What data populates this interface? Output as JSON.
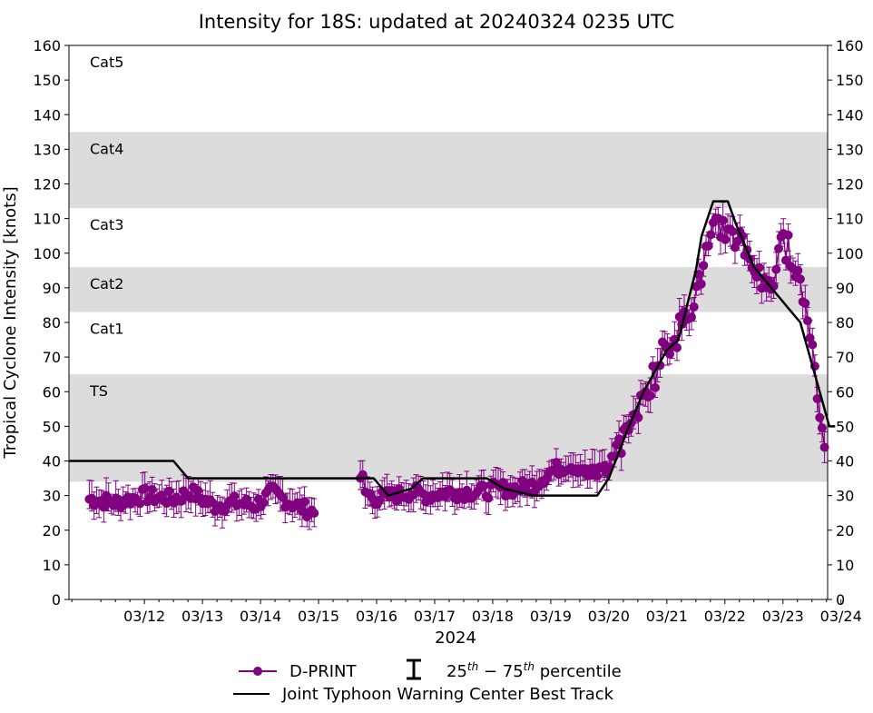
{
  "chart_data": {
    "type": "scatter",
    "title": "Intensity for 18S: updated at 20240324 0235 UTC",
    "xlabel": "2024",
    "ylabel": "Tropical Cyclone Intensity [knots]",
    "ylim": [
      0,
      160
    ],
    "yticks": [
      0,
      10,
      20,
      30,
      40,
      50,
      60,
      70,
      80,
      90,
      100,
      110,
      120,
      130,
      140,
      150,
      160
    ],
    "xlim_days": [
      10.7,
      23.77
    ],
    "xticks": [
      {
        "day": 12,
        "label": "03/12"
      },
      {
        "day": 13,
        "label": "03/13"
      },
      {
        "day": 14,
        "label": "03/14"
      },
      {
        "day": 15,
        "label": "03/15"
      },
      {
        "day": 16,
        "label": "03/16"
      },
      {
        "day": 17,
        "label": "03/17"
      },
      {
        "day": 18,
        "label": "03/18"
      },
      {
        "day": 19,
        "label": "03/19"
      },
      {
        "day": 20,
        "label": "03/20"
      },
      {
        "day": 21,
        "label": "03/21"
      },
      {
        "day": 22,
        "label": "03/22"
      },
      {
        "day": 23,
        "label": "03/23"
      },
      {
        "day": 24,
        "label": "03/24"
      }
    ],
    "categories": [
      {
        "name": "TS",
        "min": 34,
        "max": 65,
        "shaded": true
      },
      {
        "name": "Cat1",
        "min": 65,
        "max": 83,
        "shaded": false
      },
      {
        "name": "Cat2",
        "min": 83,
        "max": 96,
        "shaded": true
      },
      {
        "name": "Cat3",
        "min": 96,
        "max": 113,
        "shaded": false
      },
      {
        "name": "Cat4",
        "min": 113,
        "max": 135,
        "shaded": true
      },
      {
        "name": "Cat5",
        "min": 135,
        "max": 160,
        "shaded": false
      }
    ],
    "series": [
      {
        "name": "D-PRINT",
        "color": "#800080",
        "marker": "circle",
        "errorbars": "25th-75th percentile",
        "segments": [
          {
            "start": 11.05,
            "end": 14.95,
            "points": [
              [
                11.05,
                29
              ],
              [
                11.5,
                28
              ],
              [
                12.0,
                30
              ],
              [
                12.5,
                29
              ],
              [
                12.8,
                31
              ],
              [
                13.2,
                27
              ],
              [
                13.6,
                28
              ],
              [
                13.9,
                27
              ],
              [
                14.2,
                31
              ],
              [
                14.5,
                28
              ],
              [
                14.8,
                26
              ],
              [
                14.95,
                25
              ]
            ]
          },
          {
            "start": 15.72,
            "end": 19.55,
            "points": [
              [
                15.72,
                37
              ],
              [
                15.8,
                31
              ],
              [
                16.0,
                29
              ],
              [
                16.3,
                30
              ],
              [
                16.6,
                31
              ],
              [
                16.9,
                30
              ],
              [
                17.2,
                31
              ],
              [
                17.5,
                31
              ],
              [
                17.8,
                31
              ],
              [
                18.1,
                32
              ],
              [
                18.4,
                32
              ],
              [
                18.7,
                33
              ],
              [
                19.0,
                37
              ],
              [
                19.3,
                39
              ],
              [
                19.55,
                38
              ]
            ]
          },
          {
            "start": 19.55,
            "end": 23.72,
            "points": [
              [
                19.55,
                38
              ],
              [
                19.8,
                37
              ],
              [
                20.0,
                37
              ],
              [
                20.2,
                45
              ],
              [
                20.4,
                52
              ],
              [
                20.6,
                58
              ],
              [
                20.8,
                66
              ],
              [
                21.0,
                74
              ],
              [
                21.2,
                78
              ],
              [
                21.4,
                84
              ],
              [
                21.6,
                94
              ],
              [
                21.75,
                104
              ],
              [
                21.9,
                107
              ],
              [
                22.05,
                108
              ],
              [
                22.25,
                104
              ],
              [
                22.45,
                98
              ],
              [
                22.65,
                90
              ],
              [
                22.85,
                92
              ],
              [
                22.95,
                103
              ],
              [
                23.1,
                101
              ],
              [
                23.25,
                96
              ],
              [
                23.4,
                83
              ],
              [
                23.5,
                76
              ],
              [
                23.6,
                57
              ],
              [
                23.7,
                48
              ],
              [
                23.72,
                45
              ]
            ]
          }
        ]
      },
      {
        "name": "Joint Typhoon Warning Center Best Track",
        "color": "#000000",
        "points": [
          [
            10.7,
            40
          ],
          [
            12.5,
            40
          ],
          [
            12.75,
            35
          ],
          [
            15.0,
            35
          ],
          [
            15.95,
            35
          ],
          [
            16.2,
            30
          ],
          [
            16.6,
            32
          ],
          [
            16.8,
            35
          ],
          [
            17.9,
            35
          ],
          [
            18.2,
            32
          ],
          [
            18.7,
            30
          ],
          [
            19.8,
            30
          ],
          [
            20.0,
            35
          ],
          [
            20.3,
            48
          ],
          [
            20.6,
            60
          ],
          [
            21.0,
            72
          ],
          [
            21.2,
            75
          ],
          [
            21.5,
            95
          ],
          [
            21.6,
            105
          ],
          [
            21.8,
            115
          ],
          [
            22.05,
            115
          ],
          [
            22.2,
            108
          ],
          [
            22.5,
            96
          ],
          [
            22.8,
            90
          ],
          [
            23.1,
            84
          ],
          [
            23.3,
            80
          ],
          [
            23.6,
            62
          ],
          [
            23.8,
            50
          ],
          [
            23.9,
            50
          ]
        ]
      }
    ],
    "legend": {
      "placement": "bottom-center",
      "dprint_label": "D-PRINT",
      "percentile_label": "25th - 75th percentile",
      "percentile_label_pre": "25",
      "percentile_label_mid": " − 75",
      "percentile_label_post": " percentile",
      "percentile_sup": "th",
      "besttrack_label": "Joint Typhoon Warning Center Best Track"
    }
  }
}
